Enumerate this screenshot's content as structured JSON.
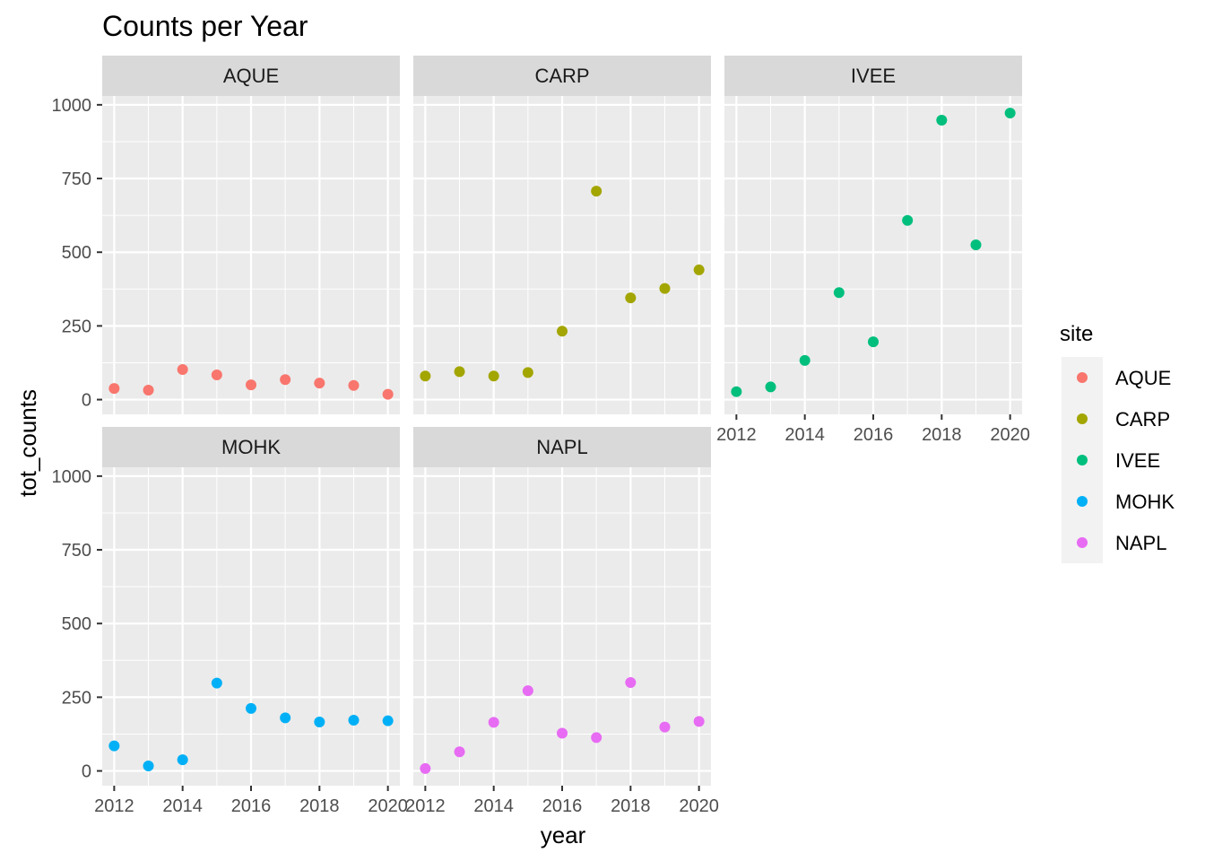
{
  "chart_data": {
    "type": "scatter",
    "title": "Counts per Year",
    "xlabel": "year",
    "ylabel": "tot_counts",
    "xlim": [
      2011.65,
      2020.35
    ],
    "ylim": [
      -50,
      1030
    ],
    "x_ticks": [
      2012,
      2014,
      2016,
      2018,
      2020
    ],
    "x_tick_labels": [
      "2012",
      "2014",
      "2016",
      "2018",
      "2020"
    ],
    "y_ticks": [
      0,
      250,
      500,
      750,
      1000
    ],
    "y_tick_labels": [
      "0",
      "250",
      "500",
      "750",
      "1000"
    ],
    "grid": true,
    "legend": {
      "title": "site",
      "position": "right",
      "entries": [
        "AQUE",
        "CARP",
        "IVEE",
        "MOHK",
        "NAPL"
      ]
    },
    "colors": {
      "AQUE": "#F8766D",
      "CARP": "#A3A500",
      "IVEE": "#00BF7D",
      "MOHK": "#00B0F6",
      "NAPL": "#E76BF3"
    },
    "panel_background": "#EBEBEB",
    "strip_background": "#D9D9D9",
    "series": [
      {
        "name": "AQUE",
        "x": [
          2012,
          2013,
          2014,
          2015,
          2016,
          2017,
          2018,
          2019,
          2020
        ],
        "values": [
          38,
          32,
          102,
          84,
          50,
          68,
          56,
          48,
          18
        ]
      },
      {
        "name": "CARP",
        "x": [
          2012,
          2013,
          2014,
          2015,
          2016,
          2017,
          2018,
          2019,
          2020
        ],
        "values": [
          80,
          95,
          80,
          92,
          232,
          707,
          345,
          377,
          440
        ]
      },
      {
        "name": "IVEE",
        "x": [
          2012,
          2013,
          2014,
          2015,
          2016,
          2017,
          2018,
          2019,
          2020
        ],
        "values": [
          27,
          43,
          133,
          363,
          196,
          608,
          948,
          525,
          972
        ]
      },
      {
        "name": "MOHK",
        "x": [
          2012,
          2013,
          2014,
          2015,
          2016,
          2017,
          2018,
          2019,
          2020
        ],
        "values": [
          85,
          17,
          38,
          298,
          212,
          180,
          166,
          172,
          170
        ]
      },
      {
        "name": "NAPL",
        "x": [
          2012,
          2013,
          2014,
          2015,
          2016,
          2017,
          2018,
          2019,
          2020
        ],
        "values": [
          8,
          65,
          165,
          272,
          128,
          113,
          300,
          149,
          168
        ]
      }
    ]
  }
}
